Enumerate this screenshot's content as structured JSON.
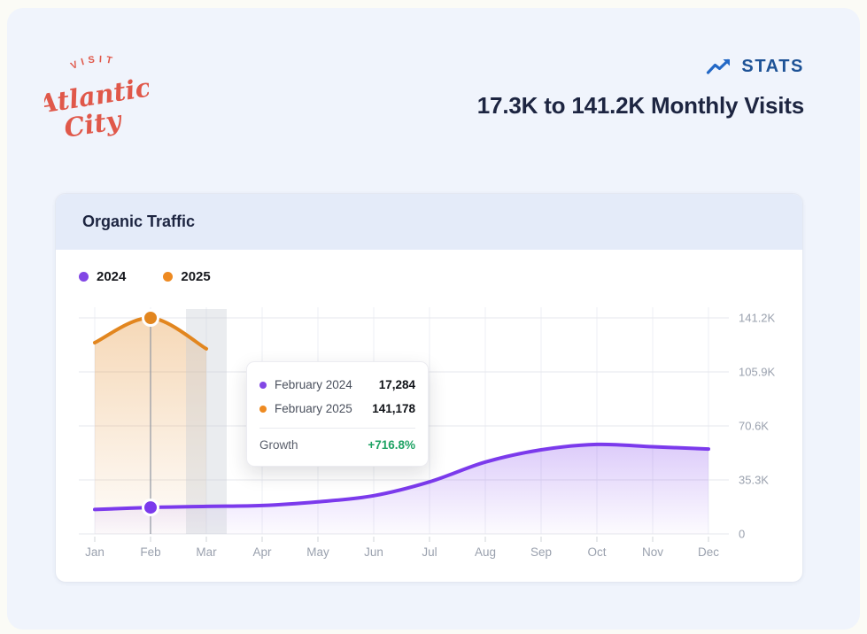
{
  "logo": {
    "top": "VISIT",
    "script1": "Atlantic",
    "script2": "City",
    "color": "#e0584a"
  },
  "header": {
    "stats_label": "STATS",
    "stats_color": "#1d5296",
    "icon_color": "#2368c6",
    "title": "17.3K to 141.2K Monthly Visits",
    "title_color": "#1d2541"
  },
  "card": {
    "title": "Organic Traffic"
  },
  "legend": {
    "items": [
      {
        "label": "2024",
        "color": "#8247e5"
      },
      {
        "label": "2025",
        "color": "#ee8a21"
      }
    ]
  },
  "tooltip": {
    "rows": [
      {
        "label": "February 2024",
        "value": "17,284",
        "color": "#8247e5"
      },
      {
        "label": "February 2025",
        "value": "141,178",
        "color": "#ee8a21"
      }
    ],
    "growth_label": "Growth",
    "growth_value": "+716.8%",
    "growth_color": "#1fa364"
  },
  "chart_data": {
    "type": "line",
    "title": "Organic Traffic",
    "categories": [
      "Jan",
      "Feb",
      "Mar",
      "Apr",
      "May",
      "Jun",
      "Jul",
      "Aug",
      "Sep",
      "Oct",
      "Nov",
      "Dec"
    ],
    "series": [
      {
        "name": "2024",
        "color": "#7b3aec",
        "area_opacity": 0.26,
        "values": [
          16000,
          17284,
          18000,
          18600,
          21000,
          25000,
          34000,
          47000,
          55000,
          58500,
          57000,
          55500
        ]
      },
      {
        "name": "2025",
        "color": "#e2861f",
        "area_opacity": 0.32,
        "values": [
          125000,
          141178,
          121000,
          null,
          null,
          null,
          null,
          null,
          null,
          null,
          null,
          null
        ]
      }
    ],
    "ylim": [
      0,
      141200
    ],
    "yticks": [
      {
        "v": 0,
        "label": "0"
      },
      {
        "v": 35300,
        "label": "35.3K"
      },
      {
        "v": 70600,
        "label": "70.6K"
      },
      {
        "v": 105900,
        "label": "105.9K"
      },
      {
        "v": 141200,
        "label": "141.2K"
      }
    ],
    "grid": true,
    "legend_position": "top-left",
    "highlight_band": {
      "category": "Mar"
    },
    "crosshair": {
      "category": "Feb",
      "points": [
        {
          "series": "2024",
          "value": 17284
        },
        {
          "series": "2025",
          "value": 141178
        }
      ]
    },
    "axis_color": "#9aa1ae",
    "grid_color": "#e6e7ec",
    "vgrid_color": "#edeff4",
    "band_color": "#c9ccd6",
    "crosshair_color": "#9096a2"
  }
}
